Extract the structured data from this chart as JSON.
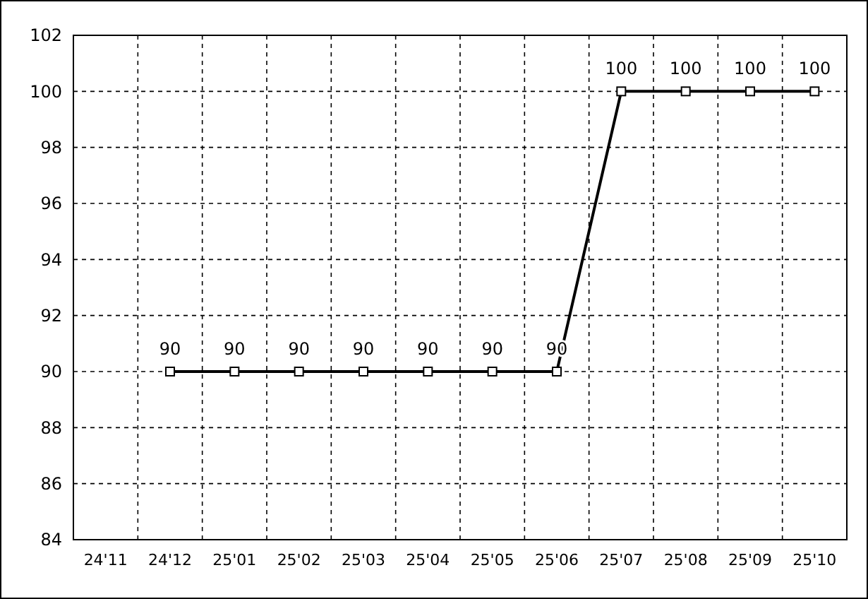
{
  "chart_data": {
    "type": "line",
    "categories": [
      "24'11",
      "24'12",
      "25'01",
      "25'02",
      "25'03",
      "25'04",
      "25'05",
      "25'06",
      "25'07",
      "25'08",
      "25'09",
      "25'10"
    ],
    "series": [
      {
        "color": "#000000",
        "values": [
          null,
          90,
          90,
          90,
          90,
          90,
          90,
          90,
          100,
          100,
          100,
          100
        ]
      }
    ],
    "ylim": [
      84,
      102
    ],
    "yticks": [
      84,
      86,
      88,
      90,
      92,
      94,
      96,
      98,
      100,
      102
    ],
    "grid": true,
    "marker": "square",
    "line_style": "solid",
    "data_labels": true
  }
}
